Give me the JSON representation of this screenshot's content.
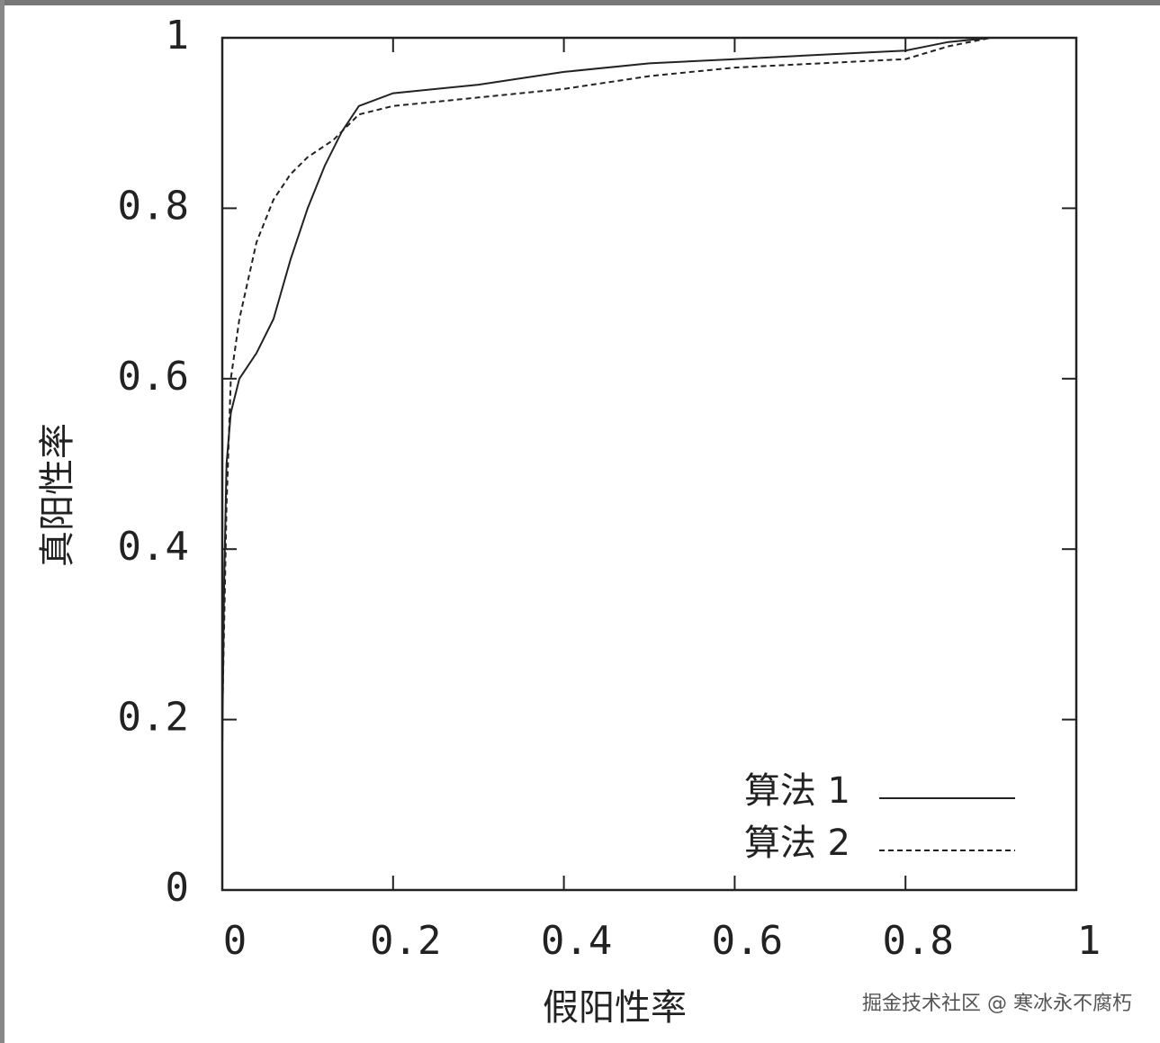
{
  "chart_data": {
    "type": "line",
    "xlabel": "假阳性率",
    "ylabel": "真阳性率",
    "xlim": [
      0,
      1
    ],
    "ylim": [
      0,
      1
    ],
    "xticks": [
      0,
      0.2,
      0.4,
      0.6,
      0.8,
      1
    ],
    "yticks": [
      0,
      0.2,
      0.4,
      0.6,
      0.8,
      1
    ],
    "legend": "lower right",
    "series": [
      {
        "name": "算法 1",
        "color": "#222222",
        "dash": "solid",
        "x": [
          0,
          0.002,
          0.005,
          0.01,
          0.02,
          0.04,
          0.06,
          0.08,
          0.1,
          0.12,
          0.14,
          0.16,
          0.2,
          0.3,
          0.4,
          0.5,
          0.6,
          0.7,
          0.8,
          0.85,
          0.9,
          1
        ],
        "values": [
          0.17,
          0.35,
          0.5,
          0.56,
          0.6,
          0.63,
          0.67,
          0.74,
          0.8,
          0.85,
          0.89,
          0.92,
          0.935,
          0.945,
          0.96,
          0.97,
          0.975,
          0.98,
          0.985,
          0.995,
          1,
          1
        ]
      },
      {
        "name": "算法 2",
        "color": "#222222",
        "dash": "dashed",
        "x": [
          0,
          0.005,
          0.01,
          0.02,
          0.04,
          0.06,
          0.08,
          0.1,
          0.13,
          0.16,
          0.2,
          0.3,
          0.4,
          0.5,
          0.6,
          0.7,
          0.8,
          0.85,
          0.9,
          1
        ],
        "values": [
          0.2,
          0.45,
          0.6,
          0.67,
          0.76,
          0.81,
          0.84,
          0.86,
          0.88,
          0.91,
          0.92,
          0.93,
          0.94,
          0.955,
          0.965,
          0.97,
          0.975,
          0.99,
          1,
          1
        ]
      }
    ]
  },
  "watermark": "掘金技术社区 @ 寒冰永不腐朽"
}
